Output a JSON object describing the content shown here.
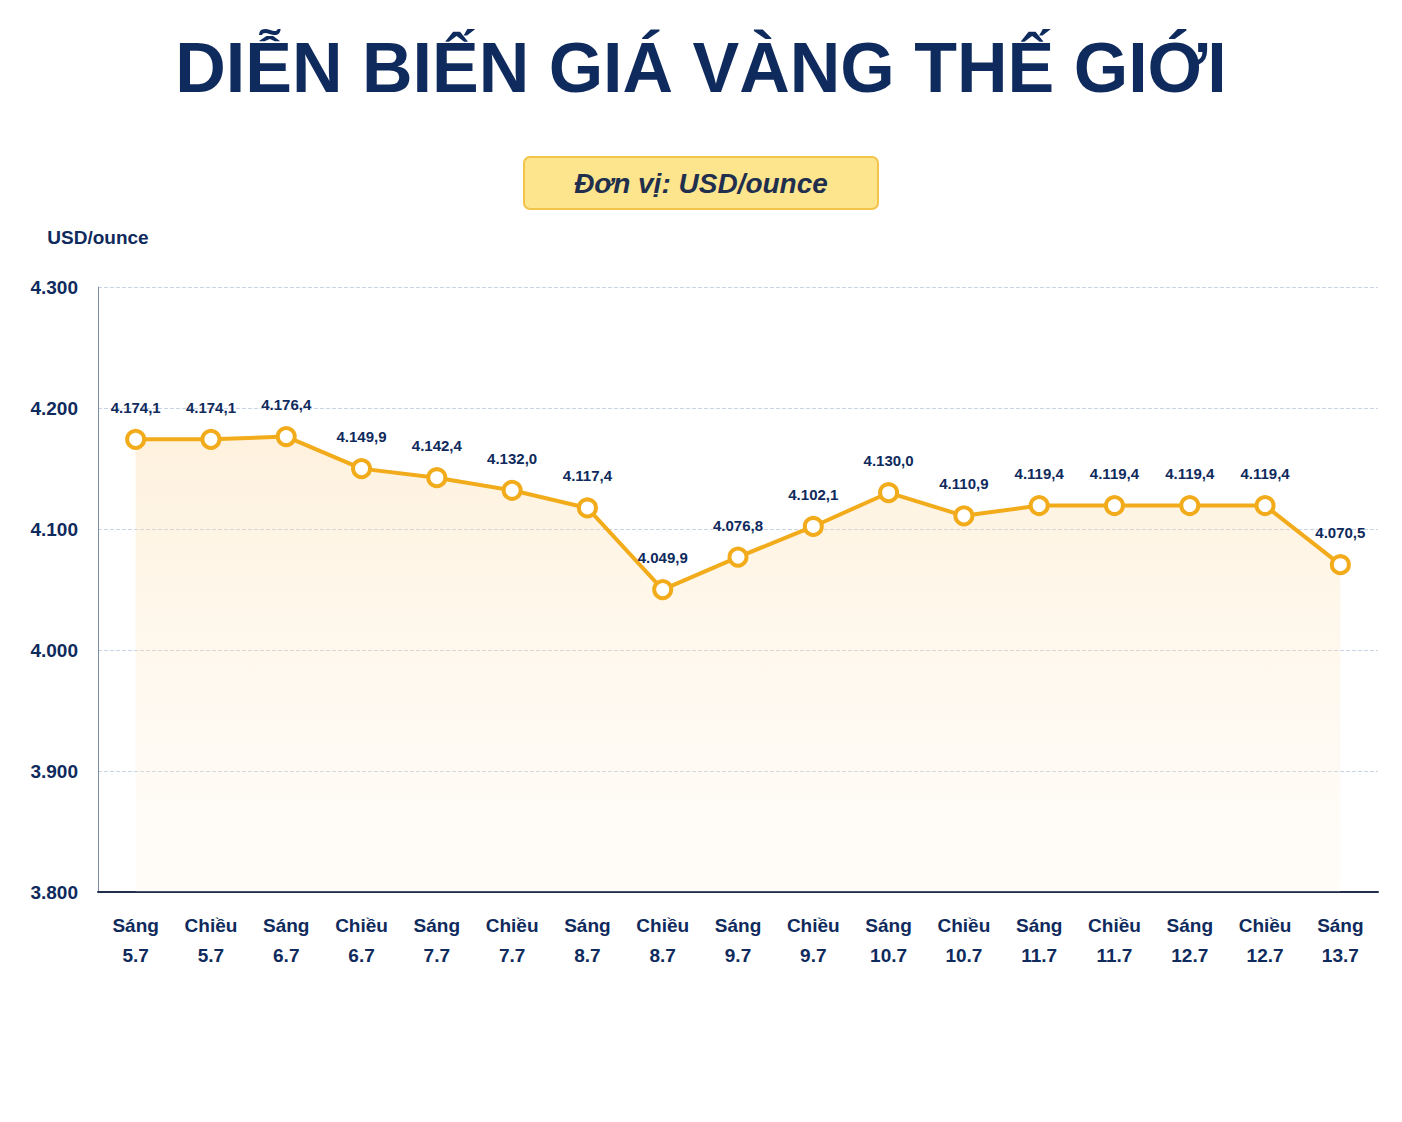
{
  "chart_data": {
    "type": "line",
    "title": "DIỄN BIẾN GIÁ VÀNG THẾ GIỚI",
    "subtitle": "Đơn vị: USD/ounce",
    "ylabel": "USD/ounce",
    "categories": [
      "Sáng 5.7",
      "Chiều 5.7",
      "Sáng 6.7",
      "Chiều 6.7",
      "Sáng 7.7",
      "Chiều 7.7",
      "Sáng 8.7",
      "Chiều 8.7",
      "Sáng 9.7",
      "Chiều 9.7",
      "Sáng 10.7",
      "Chiều 10.7",
      "Sáng 11.7",
      "Chiều 11.7",
      "Sáng 12.7",
      "Chiều 12.7",
      "Sáng 13.7"
    ],
    "values": [
      4174.1,
      4174.1,
      4176.4,
      4149.9,
      4142.4,
      4132.0,
      4117.4,
      4049.9,
      4076.8,
      4102.1,
      4130.0,
      4110.9,
      4119.4,
      4119.4,
      4119.4,
      4119.4,
      4070.5
    ],
    "value_labels": [
      "4.174,1",
      "4.174,1",
      "4.176,4",
      "4.149,9",
      "4.142,4",
      "4.132,0",
      "4.117,4",
      "4.049,9",
      "4.076,8",
      "4.102,1",
      "4.130,0",
      "4.110,9",
      "4.119,4",
      "4.119,4",
      "4.119,4",
      "4.119,4",
      "4.070,5"
    ],
    "color": "#f2ac1b",
    "ylim": [
      3800,
      4300
    ],
    "yticks": [
      {
        "value": 3800,
        "label": "3.800"
      },
      {
        "value": 3900,
        "label": "3.900"
      },
      {
        "value": 4000,
        "label": "4.000"
      },
      {
        "value": 4100,
        "label": "4.100"
      },
      {
        "value": 4200,
        "label": "4.200"
      },
      {
        "value": 4300,
        "label": "4.300"
      }
    ],
    "grid": true,
    "data_labels": true,
    "marker": "circle"
  }
}
